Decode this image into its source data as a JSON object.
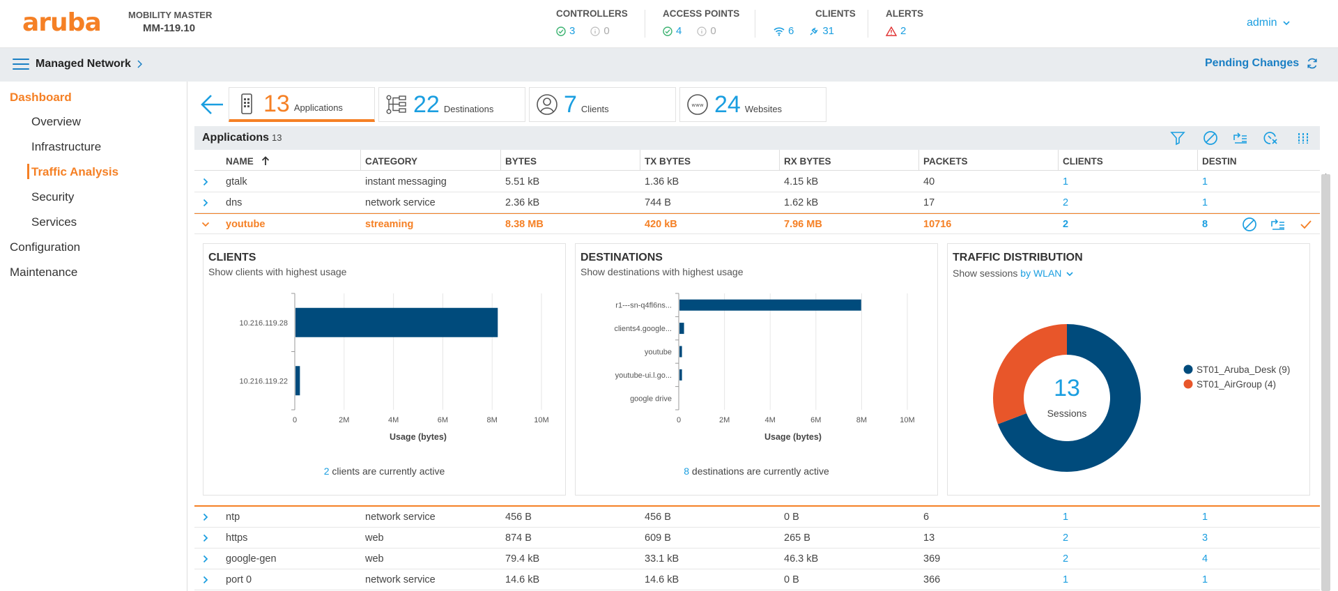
{
  "header": {
    "logo": "aruba",
    "mm_title": "MOBILITY MASTER",
    "mm_name": "MM-119.10",
    "controllers": {
      "title": "CONTROLLERS",
      "up": "3",
      "down": "0"
    },
    "access_points": {
      "title": "ACCESS POINTS",
      "up": "4",
      "down": "0"
    },
    "clients": {
      "title": "CLIENTS",
      "wireless": "6",
      "wired": "31"
    },
    "alerts": {
      "title": "ALERTS",
      "count": "2"
    },
    "user": "admin",
    "colors": {
      "brand": "#f58025",
      "link": "#1a9ee0",
      "ok": "#3cb371",
      "alert": "#e03030"
    }
  },
  "subbar": {
    "title": "Managed Network",
    "pending": "Pending Changes"
  },
  "sidebar": {
    "dashboard": "Dashboard",
    "overview": "Overview",
    "infrastructure": "Infrastructure",
    "traffic_analysis": "Traffic Analysis",
    "security": "Security",
    "services": "Services",
    "configuration": "Configuration",
    "maintenance": "Maintenance"
  },
  "tabs": [
    {
      "num": "13",
      "label": "Applications",
      "icon": "phone-apps-icon"
    },
    {
      "num": "22",
      "label": "Destinations",
      "icon": "network-tree-icon"
    },
    {
      "num": "7",
      "label": "Clients",
      "icon": "user-icon"
    },
    {
      "num": "24",
      "label": "Websites",
      "icon": "www-icon"
    }
  ],
  "apps": {
    "title": "Applications",
    "count": "13",
    "columns": [
      "NAME",
      "CATEGORY",
      "BYTES",
      "TX BYTES",
      "RX BYTES",
      "PACKETS",
      "CLIENTS",
      "DESTIN"
    ],
    "rows": [
      {
        "name": "gtalk",
        "category": "instant messaging",
        "bytes": "5.51 kB",
        "tx": "1.36 kB",
        "rx": "4.15 kB",
        "packets": "40",
        "clients": "1",
        "dest": "1"
      },
      {
        "name": "dns",
        "category": "network service",
        "bytes": "2.36 kB",
        "tx": "744 B",
        "rx": "1.62 kB",
        "packets": "17",
        "clients": "2",
        "dest": "1"
      },
      {
        "name": "youtube",
        "category": "streaming",
        "bytes": "8.38 MB",
        "tx": "420 kB",
        "rx": "7.96 MB",
        "packets": "10716",
        "clients": "2",
        "dest": "8"
      },
      {
        "name": "ntp",
        "category": "network service",
        "bytes": "456 B",
        "tx": "456 B",
        "rx": "0 B",
        "packets": "6",
        "clients": "1",
        "dest": "1"
      },
      {
        "name": "https",
        "category": "web",
        "bytes": "874 B",
        "tx": "609 B",
        "rx": "265 B",
        "packets": "13",
        "clients": "2",
        "dest": "3"
      },
      {
        "name": "google-gen",
        "category": "web",
        "bytes": "79.4 kB",
        "tx": "33.1 kB",
        "rx": "46.3 kB",
        "packets": "369",
        "clients": "2",
        "dest": "4"
      },
      {
        "name": "port 0",
        "category": "network service",
        "bytes": "14.6 kB",
        "tx": "14.6 kB",
        "rx": "0 B",
        "packets": "366",
        "clients": "1",
        "dest": "1"
      }
    ]
  },
  "clients_card": {
    "title": "CLIENTS",
    "subtitle": "Show clients with highest usage",
    "foot_num": "2",
    "foot_text": "clients are currently active"
  },
  "destinations_card": {
    "title": "DESTINATIONS",
    "subtitle": "Show destinations with highest usage",
    "foot_num": "8",
    "foot_text": "destinations are currently active"
  },
  "traffic_card": {
    "title": "TRAFFIC DISTRIBUTION",
    "subtitle": "Show sessions",
    "subtitle_link": "by WLAN",
    "center_value": "13",
    "center_label": "Sessions"
  },
  "chart_data": [
    {
      "type": "bar",
      "orientation": "horizontal",
      "title": "CLIENTS",
      "categories": [
        "10.216.119.28",
        "10.216.119.22"
      ],
      "values": [
        8200000,
        180000
      ],
      "xlabel": "Usage (bytes)",
      "xlim": [
        0,
        10000000
      ],
      "xticks": [
        "0",
        "2M",
        "4M",
        "6M",
        "8M",
        "10M"
      ],
      "color": "#004b7c",
      "grid": true
    },
    {
      "type": "bar",
      "orientation": "horizontal",
      "title": "DESTINATIONS",
      "categories": [
        "r1---sn-q4fl6ns...",
        "clients4.google...",
        "youtube",
        "youtube-ui.l.go...",
        "google drive"
      ],
      "values": [
        7950000,
        200000,
        110000,
        110000,
        0
      ],
      "xlabel": "Usage (bytes)",
      "xlim": [
        0,
        10000000
      ],
      "xticks": [
        "0",
        "2M",
        "4M",
        "6M",
        "8M",
        "10M"
      ],
      "color": "#004b7c",
      "grid": true
    },
    {
      "type": "pie",
      "title": "TRAFFIC DISTRIBUTION",
      "donut": true,
      "series": [
        {
          "name": "ST01_Aruba_Desk",
          "value": 9,
          "color": "#004b7c"
        },
        {
          "name": "ST01_AirGroup",
          "value": 4,
          "color": "#e8562a"
        }
      ],
      "legend_labels": [
        "ST01_Aruba_Desk (9)",
        "ST01_AirGroup (4)"
      ],
      "legend": "right"
    }
  ]
}
